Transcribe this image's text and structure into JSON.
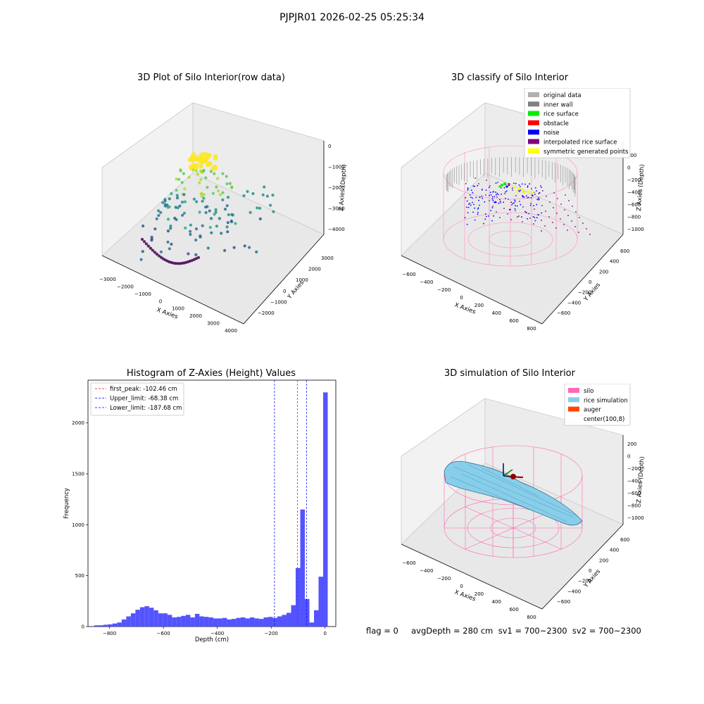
{
  "suptitle": "PJPJR01 2026-02-25 05:25:34",
  "panels": {
    "raw": {
      "title": "3D Plot of Silo Interior(row data)",
      "xlabel": "X Axies",
      "ylabel": "Y Axies",
      "zlabel": "Z Axies (Depth)",
      "xticks": [
        "−3000",
        "−2000",
        "−1000",
        "0",
        "1000",
        "2000",
        "3000",
        "4000"
      ],
      "yticks": [
        "−2000",
        "−1000",
        "0",
        "1000",
        "2000",
        "3000"
      ],
      "zticks": [
        "0",
        "−1000",
        "−2000",
        "−3000",
        "−4000"
      ],
      "colormap": "viridis"
    },
    "classify": {
      "title": "3D classify of Silo Interior",
      "xlabel": "X Axies",
      "ylabel": "Y Axies",
      "zlabel": "Z Axies (Depth)",
      "xticks": [
        "−600",
        "−400",
        "−200",
        "0",
        "200",
        "400",
        "600",
        "800"
      ],
      "yticks": [
        "−600",
        "−400",
        "−200",
        "0",
        "200",
        "400",
        "600"
      ],
      "zticks": [
        "200",
        "0",
        "−200",
        "−400",
        "−600",
        "−800",
        "−1000"
      ],
      "legend": [
        {
          "label": "original data",
          "color": "#b0b0b0"
        },
        {
          "label": "inner wall",
          "color": "#808080"
        },
        {
          "label": "rice surface",
          "color": "#00ee00"
        },
        {
          "label": "obstacle",
          "color": "#ff0000"
        },
        {
          "label": "noise",
          "color": "#0000ff"
        },
        {
          "label": "interpolated rice surface",
          "color": "#800080"
        },
        {
          "label": "symmetric generated points",
          "color": "#ffff00"
        }
      ]
    },
    "simulation": {
      "title": "3D simulation of Silo Interior",
      "xlabel": "X Axies",
      "ylabel": "Y Axies",
      "zlabel": "Z Axies (Depth)",
      "xticks": [
        "−600",
        "−400",
        "−200",
        "0",
        "200",
        "400",
        "600",
        "800"
      ],
      "yticks": [
        "−600",
        "−400",
        "−200",
        "0",
        "200",
        "400",
        "600"
      ],
      "zticks": [
        "200",
        "0",
        "−200",
        "−400",
        "−600",
        "−800",
        "−1000"
      ],
      "legend": [
        {
          "label": "silo",
          "color": "#ff69b4"
        },
        {
          "label": "rice simulation",
          "color": "#87ceeb"
        },
        {
          "label": "auger",
          "color": "#ff4500"
        },
        {
          "label": "center(100,8)",
          "color": "#ffffff"
        }
      ]
    }
  },
  "footer": {
    "text": "flag = 0     avgDepth = 280 cm  sv1 = 700~2300  sv2 = 700~2300"
  },
  "chart_data": {
    "type": "bar",
    "title": "Histogram of Z-Axies (Height) Values",
    "xlabel": "Depth (cm)",
    "ylabel": "Frequency",
    "xlim": [
      -880,
      40
    ],
    "ylim": [
      0,
      2420
    ],
    "xticks": [
      -800,
      -600,
      -400,
      -200,
      0
    ],
    "xtick_labels": [
      "−800",
      "−600",
      "−400",
      "−200",
      "0"
    ],
    "yticks": [
      0,
      500,
      1000,
      1500,
      2000
    ],
    "bin_width": 17,
    "bin_left_edges": [
      -857,
      -840,
      -823,
      -806,
      -789,
      -772,
      -755,
      -738,
      -721,
      -704,
      -687,
      -670,
      -653,
      -636,
      -619,
      -602,
      -585,
      -568,
      -551,
      -534,
      -517,
      -500,
      -483,
      -466,
      -449,
      -432,
      -415,
      -398,
      -381,
      -364,
      -347,
      -330,
      -313,
      -296,
      -279,
      -262,
      -245,
      -228,
      -211,
      -194,
      -177,
      -160,
      -143,
      -126,
      -109,
      -92,
      -75,
      -58,
      -41,
      -24,
      -7
    ],
    "values": [
      12,
      13,
      18,
      22,
      30,
      40,
      70,
      100,
      130,
      165,
      190,
      200,
      185,
      160,
      130,
      130,
      115,
      90,
      95,
      105,
      115,
      90,
      125,
      100,
      95,
      90,
      80,
      80,
      85,
      70,
      75,
      85,
      90,
      80,
      90,
      80,
      75,
      90,
      95,
      85,
      100,
      115,
      135,
      210,
      575,
      1150,
      270,
      40,
      160,
      490,
      2300
    ],
    "color": "#4b4bff",
    "lines": [
      {
        "label": "first_peak: -102.46 cm",
        "x": -102.46,
        "color": "#ff0000"
      },
      {
        "label": "Upper_limit: -68.38 cm",
        "x": -68.38,
        "color": "#0000ff"
      },
      {
        "label": "Lower_limit: -187.68 cm",
        "x": -187.68,
        "color": "#0000ff"
      }
    ]
  }
}
